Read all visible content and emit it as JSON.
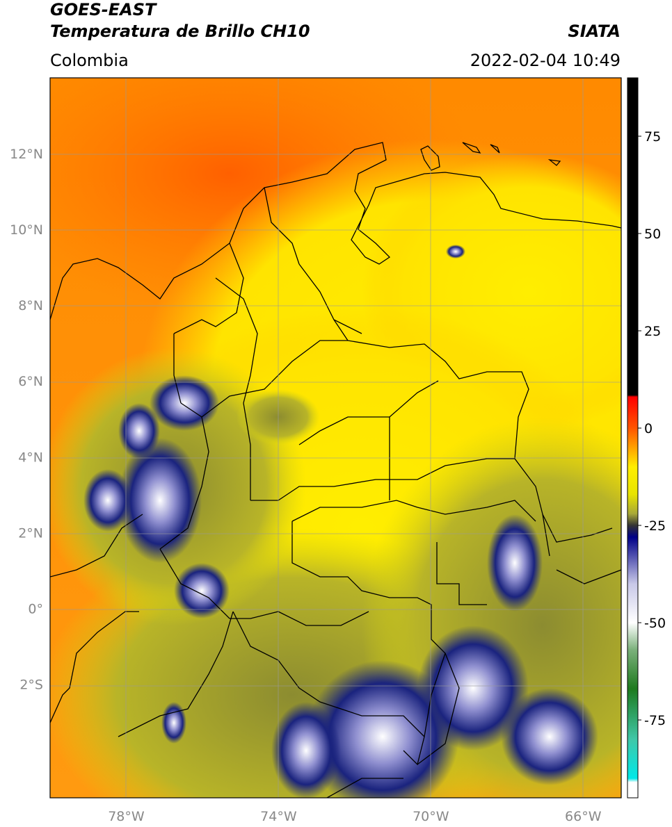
{
  "header": {
    "title_line1": "GOES-EAST",
    "title_line2": "Temperatura de Brillo CH10",
    "source": "SIATA",
    "region": "Colombia",
    "datetime": "2022-02-04 10:49"
  },
  "map": {
    "lon_range": [
      -80,
      -65
    ],
    "lat_range": [
      -5,
      14
    ],
    "lat_ticks": [
      {
        "value": 12,
        "label": "12°N"
      },
      {
        "value": 10,
        "label": "10°N"
      },
      {
        "value": 8,
        "label": "8°N"
      },
      {
        "value": 6,
        "label": "6°N"
      },
      {
        "value": 4,
        "label": "4°N"
      },
      {
        "value": 2,
        "label": "2°N"
      },
      {
        "value": 0,
        "label": "0°"
      },
      {
        "value": -2,
        "label": "2°S"
      }
    ],
    "lon_ticks": [
      {
        "value": -78,
        "label": "78°W"
      },
      {
        "value": -74,
        "label": "74°W"
      },
      {
        "value": -70,
        "label": "70°W"
      },
      {
        "value": -66,
        "label": "66°W"
      }
    ],
    "colors": {
      "ocean_warm": "#ff6a00",
      "land_warm": "#ffee00",
      "cold_cloud": "#1a237e",
      "very_cold": "#ffffff"
    }
  },
  "colorbar": {
    "range": [
      -95,
      90
    ],
    "ticks": [
      {
        "value": 75,
        "label": "75"
      },
      {
        "value": 50,
        "label": "50"
      },
      {
        "value": 25,
        "label": "25"
      },
      {
        "value": 0,
        "label": "0"
      },
      {
        "value": -25,
        "label": "-25"
      },
      {
        "value": -50,
        "label": "-50"
      },
      {
        "value": -75,
        "label": "-75"
      }
    ],
    "stops": [
      {
        "value": 90,
        "color": "#000000"
      },
      {
        "value": 8.5,
        "color": "#000000"
      },
      {
        "value": 8,
        "color": "#ff0000"
      },
      {
        "value": 0,
        "color": "#ff5500"
      },
      {
        "value": -10,
        "color": "#ffee00"
      },
      {
        "value": -17,
        "color": "#e8e400"
      },
      {
        "value": -22,
        "color": "#a8a838"
      },
      {
        "value": -25,
        "color": "#333333"
      },
      {
        "value": -28,
        "color": "#000088"
      },
      {
        "value": -40,
        "color": "#c8c8e8"
      },
      {
        "value": -50,
        "color": "#ffffff"
      },
      {
        "value": -57,
        "color": "#7ab07a"
      },
      {
        "value": -67,
        "color": "#1e7a1e"
      },
      {
        "value": -80,
        "color": "#40c8a8"
      },
      {
        "value": -90,
        "color": "#00e8e8"
      },
      {
        "value": -91,
        "color": "#ffffff"
      },
      {
        "value": -95,
        "color": "#ffffff"
      }
    ]
  }
}
